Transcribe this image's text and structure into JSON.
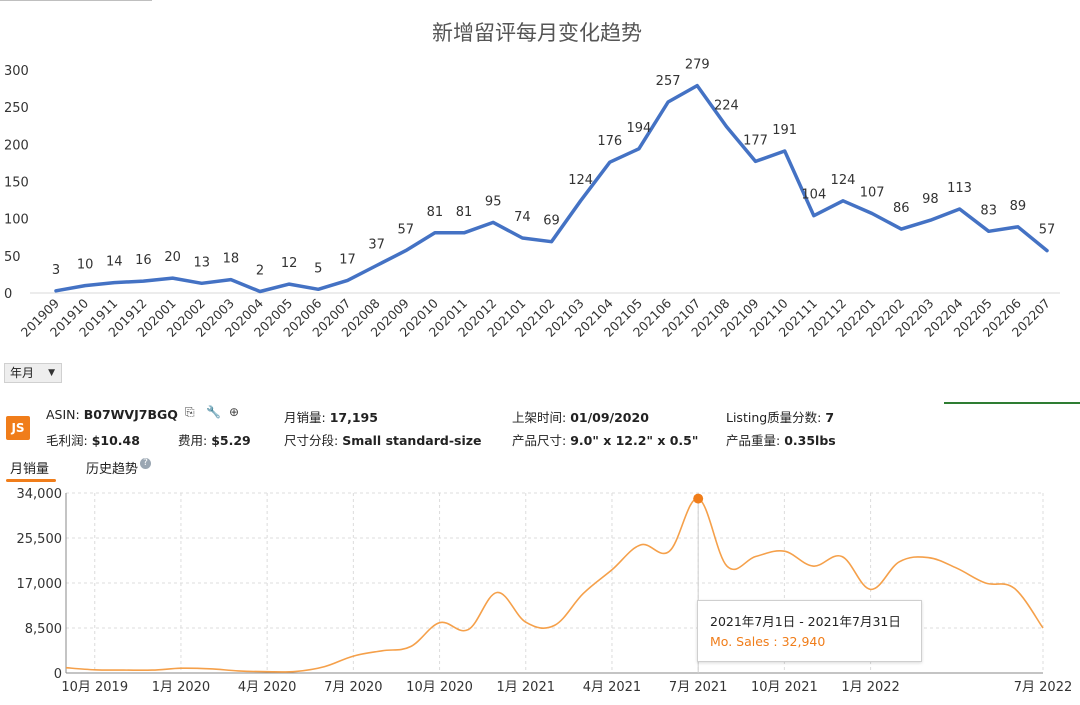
{
  "chart_data": [
    {
      "type": "line",
      "title": "新增留评每月变化趋势",
      "categories": [
        "201909",
        "201910",
        "201911",
        "201912",
        "202001",
        "202002",
        "202003",
        "202004",
        "202005",
        "202006",
        "202007",
        "202008",
        "202009",
        "202010",
        "202011",
        "202012",
        "202101",
        "202102",
        "202103",
        "202104",
        "202105",
        "202106",
        "202107",
        "202108",
        "202109",
        "202110",
        "202111",
        "202112",
        "202201",
        "202202",
        "202203",
        "202204",
        "202205",
        "202206",
        "202207"
      ],
      "values": [
        3,
        10,
        14,
        16,
        20,
        13,
        18,
        2,
        12,
        5,
        17,
        37,
        57,
        81,
        81,
        95,
        74,
        69,
        124,
        176,
        194,
        257,
        279,
        224,
        177,
        191,
        104,
        124,
        107,
        86,
        98,
        113,
        83,
        89,
        57
      ],
      "ylim": [
        0,
        300
      ],
      "yticks": [
        0,
        50,
        100,
        150,
        200,
        250,
        300
      ],
      "data_labels": true,
      "grid": false,
      "line_color": "#4472c4"
    },
    {
      "type": "line",
      "series_label": "Mo. Sales",
      "x_start": "2019-09",
      "x": [
        "2019-09",
        "2019-10",
        "2019-11",
        "2019-12",
        "2020-01",
        "2020-02",
        "2020-03",
        "2020-04",
        "2020-05",
        "2020-06",
        "2020-07",
        "2020-08",
        "2020-09",
        "2020-10",
        "2020-11",
        "2020-12",
        "2021-01",
        "2021-02",
        "2021-03",
        "2021-04",
        "2021-05",
        "2021-06",
        "2021-07",
        "2021-08",
        "2021-09",
        "2021-10",
        "2021-11",
        "2021-12",
        "2022-01",
        "2022-02",
        "2022-03",
        "2022-04",
        "2022-05",
        "2022-06",
        "2022-07"
      ],
      "values": [
        1000,
        600,
        550,
        550,
        900,
        800,
        400,
        250,
        300,
        1200,
        3200,
        4200,
        5000,
        9500,
        8200,
        15200,
        9600,
        9000,
        15000,
        19500,
        24200,
        23000,
        32940,
        20200,
        22000,
        23000,
        20200,
        22000,
        15800,
        21000,
        21800,
        19800,
        17000,
        16000,
        8500
      ],
      "ylim": [
        0,
        34000
      ],
      "yticks": [
        {
          "value": 0,
          "label": "0"
        },
        {
          "value": 8500,
          "label": "8,500"
        },
        {
          "value": 17000,
          "label": "17,000"
        },
        {
          "value": 25500,
          "label": "25,500"
        },
        {
          "value": 34000,
          "label": "34,000"
        }
      ],
      "xticks": [
        {
          "x": "2019-10",
          "label": "10月 2019"
        },
        {
          "x": "2020-01",
          "label": "1月 2020"
        },
        {
          "x": "2020-04",
          "label": "4月 2020"
        },
        {
          "x": "2020-07",
          "label": "7月 2020"
        },
        {
          "x": "2020-10",
          "label": "10月 2020"
        },
        {
          "x": "2021-01",
          "label": "1月 2021"
        },
        {
          "x": "2021-04",
          "label": "4月 2021"
        },
        {
          "x": "2021-07",
          "label": "7月 2021"
        },
        {
          "x": "2021-10",
          "label": "10月 2021"
        },
        {
          "x": "2022-01",
          "label": "1月 2022"
        },
        {
          "x": "2022-07",
          "label": "7月 2022"
        }
      ],
      "grid": true,
      "line_color": "#f5a04a",
      "highlight": {
        "x": "2021-07",
        "value": 32940
      }
    }
  ],
  "controls": {
    "period_select": "年月"
  },
  "product": {
    "logo": "JS",
    "asin_label": "ASIN: ",
    "asin": "B07WVJ7BGQ",
    "monthly_sales_label": "月销量: ",
    "monthly_sales": "17,195",
    "listed_label": "上架时间: ",
    "listed": "01/09/2020",
    "quality_label": "Listing质量分数: ",
    "quality": "7",
    "profit_label": "毛利润: ",
    "profit": "$10.48",
    "fee_label": "费用: ",
    "fee": "$5.29",
    "size_tier_label": "尺寸分段: ",
    "size_tier": "Small standard-size",
    "dims_label": "产品尺寸: ",
    "dims": "9.0\" x 12.2\" x 0.5\"",
    "weight_label": "产品重量: ",
    "weight": "0.35lbs",
    "icons": [
      "copy-icon",
      "wrench-icon",
      "add-circle-icon"
    ]
  },
  "tabs": [
    {
      "label": "月销量",
      "active": true
    },
    {
      "label": "历史趋势",
      "active": false
    }
  ],
  "tooltip": {
    "date_range": "2021年7月1日 - 2021年7月31日",
    "value_text": "Mo. Sales : 32,940"
  }
}
